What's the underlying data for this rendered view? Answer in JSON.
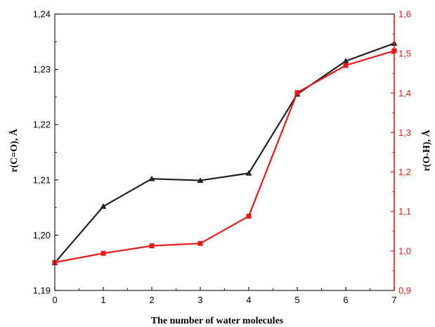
{
  "chart_data": {
    "type": "line",
    "title": "",
    "xlabel": "The number of water molecules",
    "ylabel_left": "r(C=O), Å",
    "ylabel_right": "r(O-H), Å",
    "x": [
      0,
      1,
      2,
      3,
      4,
      5,
      6,
      7
    ],
    "xlim": [
      0,
      7
    ],
    "xticks": [
      "0",
      "1",
      "2",
      "3",
      "4",
      "5",
      "6",
      "7"
    ],
    "ylim_left": [
      1.19,
      1.24
    ],
    "yticks_left": [
      "1,19",
      "1,20",
      "1,21",
      "1,22",
      "1,23",
      "1,24"
    ],
    "ylim_right": [
      0.9,
      1.6
    ],
    "yticks_right": [
      "0,9",
      "1,0",
      "1,1",
      "1,2",
      "1,3",
      "1,4",
      "1,5",
      "1,6"
    ],
    "grid": false,
    "legend": "none",
    "series": [
      {
        "axis": "left",
        "marker": "triangle",
        "color": "#222222",
        "values": [
          1.195,
          1.2052,
          1.2102,
          1.2099,
          1.2112,
          1.2255,
          1.2315,
          1.2347
        ]
      },
      {
        "axis": "right",
        "marker": "square",
        "color": "#e8191a",
        "values": [
          0.971,
          0.994,
          1.013,
          1.019,
          1.088,
          1.401,
          1.47,
          1.507
        ]
      }
    ],
    "colors": {
      "left_axis": "#222222",
      "right_axis": "#e8191a"
    }
  }
}
